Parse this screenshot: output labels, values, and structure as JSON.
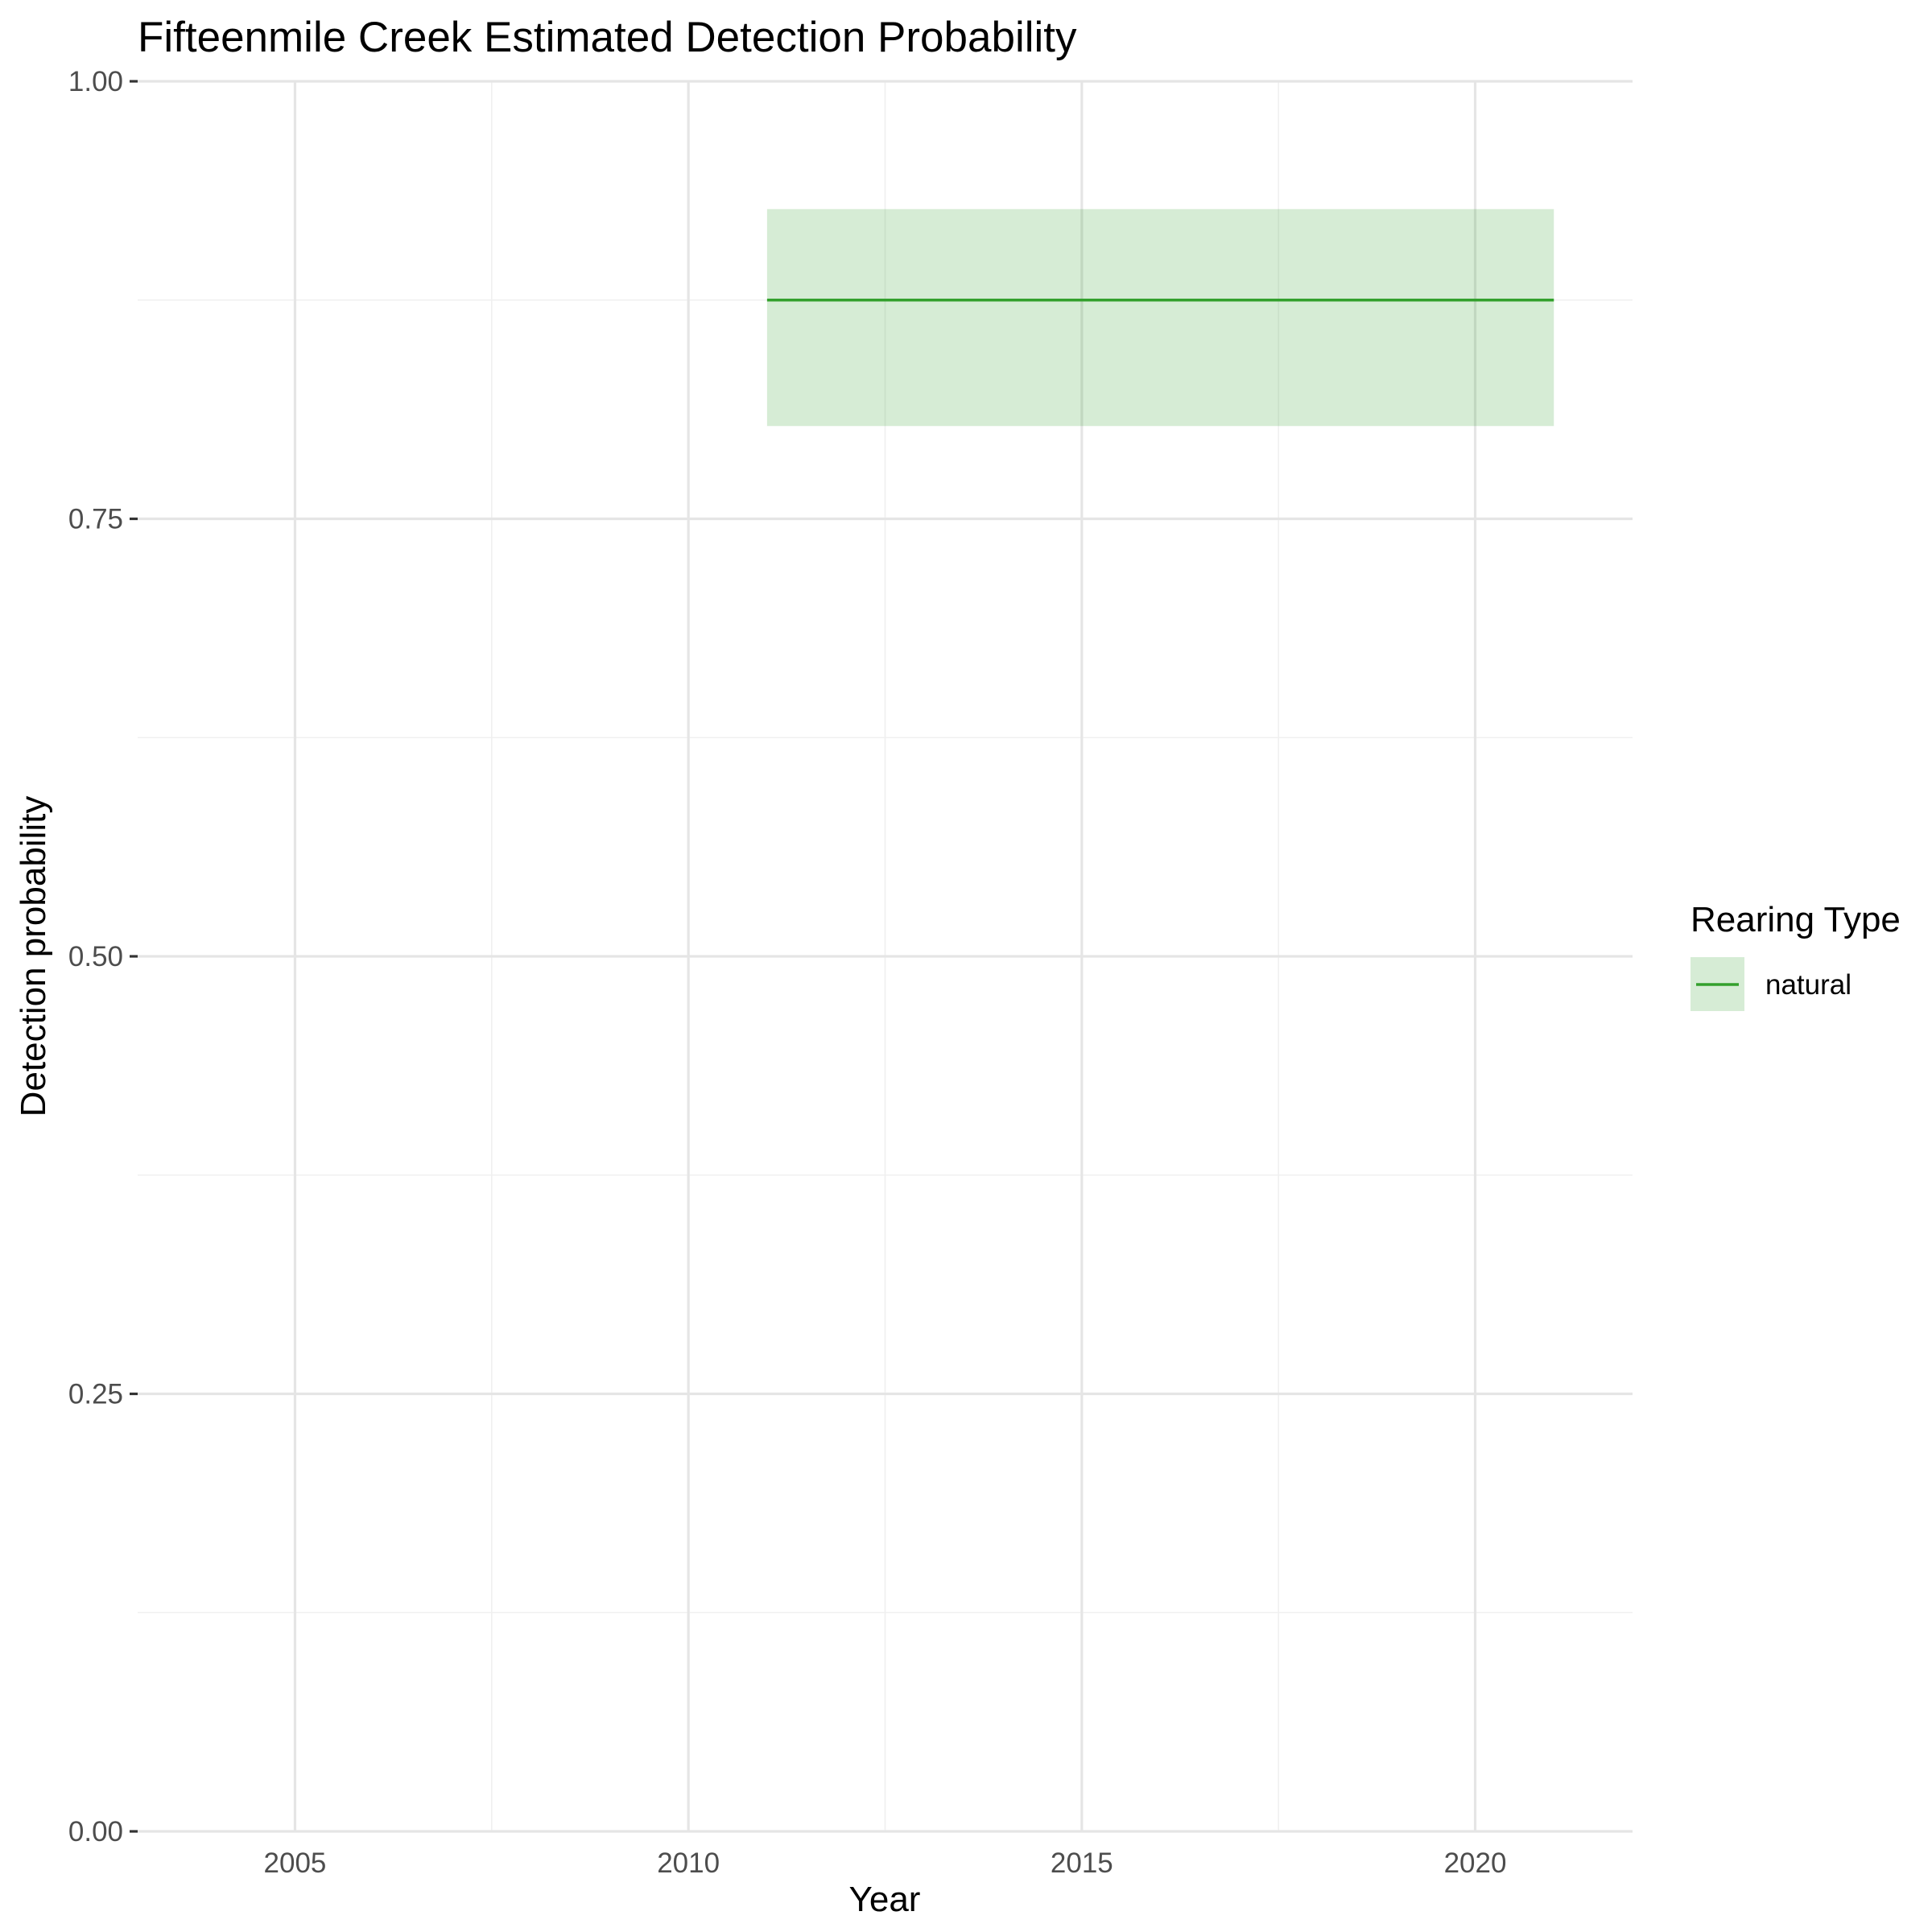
{
  "chart_data": {
    "type": "line",
    "title": "Fifteenmile Creek Estimated Detection Probability",
    "xlabel": "Year",
    "ylabel": "Detection probability",
    "xlim": [
      2003,
      2022
    ],
    "ylim": [
      0,
      1
    ],
    "x_ticks": [
      2005,
      2010,
      2015,
      2020
    ],
    "y_ticks": [
      0,
      0.25,
      0.5,
      0.75,
      1
    ],
    "y_tick_labels": [
      "0.00",
      "0.25",
      "0.50",
      "0.75",
      "1.00"
    ],
    "grid": true,
    "legend": {
      "title": "Rearing Type",
      "position": "right"
    },
    "series": [
      {
        "name": "natural",
        "color": "#33a02c",
        "ribbon_color": "#33a02c",
        "ribbon_opacity": 0.2,
        "x": [
          2011,
          2021
        ],
        "y": [
          0.875,
          0.875
        ],
        "lower": [
          0.803,
          0.803
        ],
        "upper": [
          0.927,
          0.927
        ]
      }
    ]
  }
}
